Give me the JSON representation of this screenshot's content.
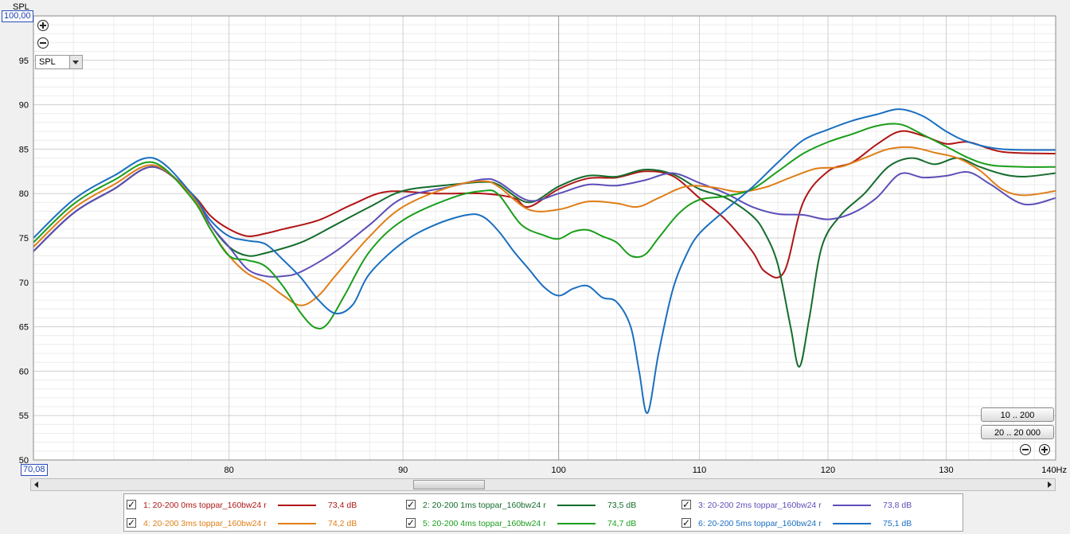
{
  "axis": {
    "y_top_label": "100,00",
    "y_unit": "SPL",
    "x_left_label": "70,08",
    "x_unit": "Hz"
  },
  "controls": {
    "mode_select": "SPL",
    "range_btn_1": "10 .. 200",
    "range_btn_2": "20 .. 20 000"
  },
  "colors": {
    "s1": "#b01515",
    "s2": "#146c2c",
    "s3": "#5c4fb8",
    "s4": "#e07e18",
    "s5": "#1a9e1a",
    "s6": "#1a6fc0"
  },
  "legend": [
    {
      "label": "1: 20-200 0ms toppar_160bw24 r",
      "db": "73,4 dB",
      "color": "#b01515"
    },
    {
      "label": "2: 20-200 1ms toppar_160bw24 r",
      "db": "73,5 dB",
      "color": "#146c2c"
    },
    {
      "label": "3: 20-200 2ms toppar_160bw24 r",
      "db": "73,8 dB",
      "color": "#5c4fb8"
    },
    {
      "label": "4: 20-200 3ms toppar_160bw24 r",
      "db": "74,2 dB",
      "color": "#e07e18"
    },
    {
      "label": "5: 20-200 4ms toppar_160bw24 r",
      "db": "74,7 dB",
      "color": "#1a9e1a"
    },
    {
      "label": "6: 20-200 5ms toppar_160bw24 r",
      "db": "75,1 dB",
      "color": "#1a6fc0"
    }
  ],
  "chart_data": {
    "type": "line",
    "ylabel": "SPL",
    "x_scale": "log",
    "xlim": [
      70.08,
      140
    ],
    "ylim": [
      50,
      100
    ],
    "x_ticks": [
      80,
      90,
      100,
      110,
      120,
      130,
      140
    ],
    "x_tick_labels": [
      "80",
      "90",
      "100",
      "110",
      "120",
      "130",
      "140Hz"
    ],
    "y_ticks": [
      50,
      55,
      60,
      65,
      70,
      75,
      80,
      85,
      90,
      95
    ],
    "grid": true,
    "series": [
      {
        "name": "1: 20-200 0ms toppar_160bw24 r",
        "color": "#b01515",
        "x": [
          70.08,
          72,
          74,
          76,
          78,
          79,
          80,
          81,
          82,
          83,
          85,
          87,
          89,
          92,
          95,
          97,
          98,
          100,
          102,
          104,
          106,
          108,
          110,
          112,
          114,
          115,
          116.5,
          118,
          120,
          122,
          124,
          126,
          128,
          130,
          132,
          135,
          140
        ],
        "y": [
          73.5,
          77.8,
          80.5,
          83,
          80,
          77.5,
          76,
          75.2,
          75.5,
          76,
          77,
          78.8,
          80.2,
          80,
          80,
          79.5,
          78.5,
          80.5,
          81.7,
          81.8,
          82.5,
          82,
          79.5,
          77,
          73.5,
          71.2,
          71.2,
          79,
          82.5,
          83.5,
          85.5,
          87,
          86.5,
          85.6,
          85.8,
          84.7,
          84.5
        ]
      },
      {
        "name": "2: 20-200 1ms toppar_160bw24 r",
        "color": "#146c2c",
        "x": [
          70.08,
          72,
          74,
          76,
          78,
          79,
          80,
          81,
          82,
          84,
          86,
          88,
          90,
          93,
          95,
          96,
          98,
          100,
          102,
          104,
          106,
          108,
          110,
          112,
          114,
          115,
          116,
          117,
          117.7,
          118.5,
          119.5,
          121,
          123,
          125,
          127,
          129,
          131,
          133,
          135,
          137,
          140
        ],
        "y": [
          73.5,
          77.8,
          80.5,
          83,
          80,
          76.5,
          74,
          73,
          73.3,
          74.5,
          76.5,
          78.5,
          80.3,
          81,
          81.3,
          81,
          79,
          80.8,
          82,
          81.9,
          82.7,
          82.2,
          80.5,
          79.5,
          77.5,
          75.5,
          72,
          65,
          60.5,
          66,
          74,
          77.5,
          80,
          83,
          84,
          83.3,
          84,
          83,
          82.2,
          81.9,
          82.3
        ]
      },
      {
        "name": "3: 20-200 2ms toppar_160bw24 r",
        "color": "#5c4fb8",
        "x": [
          70.08,
          72,
          74,
          76,
          78,
          79,
          80,
          81,
          82,
          83,
          84,
          86,
          88,
          90,
          93,
          95,
          96,
          98,
          100,
          102,
          104,
          106,
          108,
          110,
          112,
          114,
          116,
          118,
          120,
          122,
          124,
          126,
          128,
          130,
          132,
          134,
          137,
          140
        ],
        "y": [
          73.5,
          77.8,
          80.5,
          83,
          80,
          76.5,
          74,
          71.5,
          70.7,
          70.7,
          71.2,
          73.5,
          76.5,
          79.5,
          80.8,
          81.6,
          81.3,
          79.2,
          80,
          81,
          80.9,
          81.5,
          82.3,
          81.2,
          80,
          78.5,
          77.7,
          77.6,
          77.1,
          77.8,
          79.5,
          82.2,
          81.8,
          82,
          82.4,
          81,
          78.8,
          79.5
        ]
      },
      {
        "name": "4: 20-200 3ms toppar_160bw24 r",
        "color": "#e07e18",
        "x": [
          70.08,
          72,
          74,
          76,
          78,
          79,
          80,
          81,
          82,
          83,
          84,
          85,
          86,
          88,
          90,
          93,
          95,
          96,
          98,
          100,
          102,
          104,
          105.5,
          107,
          109,
          111,
          113,
          115,
          117,
          119,
          121,
          123,
          125,
          127,
          129,
          131,
          133,
          135,
          137,
          140
        ],
        "y": [
          74,
          78.3,
          81,
          83.2,
          79.8,
          76,
          73,
          71,
          70,
          68.5,
          67.4,
          68.5,
          70.8,
          75.2,
          78.5,
          80.8,
          81.4,
          80.8,
          78.2,
          78.2,
          79.1,
          78.9,
          78.5,
          79.5,
          80.8,
          80.7,
          80.2,
          80.7,
          81.8,
          82.8,
          83,
          84,
          85,
          85.2,
          84.6,
          84,
          82.6,
          80.5,
          79.8,
          80.3
        ]
      },
      {
        "name": "5: 20-200 4ms toppar_160bw24 r",
        "color": "#1a9e1a",
        "x": [
          70.08,
          72,
          74,
          76,
          78,
          79,
          80,
          81,
          82,
          83,
          84,
          84.8,
          85.5,
          86.5,
          88,
          90,
          93,
          95,
          96,
          97.5,
          99,
          100,
          101,
          102,
          103,
          104,
          105,
          106,
          107,
          108.5,
          110,
          112,
          114,
          116,
          118,
          120,
          122,
          124,
          126,
          128,
          130,
          132,
          134,
          137,
          140
        ],
        "y": [
          74.5,
          78.8,
          81.5,
          83.5,
          79.5,
          76,
          73,
          72.5,
          71.8,
          69.5,
          66.5,
          64.9,
          65.3,
          68.5,
          73.5,
          77,
          79.5,
          80.3,
          79.9,
          76.5,
          75.3,
          74.9,
          75.7,
          75.9,
          75.2,
          74.5,
          73,
          73.1,
          75,
          77.8,
          79.3,
          79.7,
          80.5,
          82.5,
          84.5,
          85.8,
          86.7,
          87.6,
          87.8,
          86.6,
          85.3,
          84,
          83.2,
          83,
          83
        ]
      },
      {
        "name": "6: 20-200 5ms toppar_160bw24 r",
        "color": "#1a6fc0",
        "x": [
          70.08,
          72,
          74,
          76,
          78,
          79,
          80,
          81,
          82,
          83,
          84,
          85,
          86,
          87,
          88,
          90,
          92,
          94,
          95,
          96,
          97,
          98,
          99,
          100,
          101,
          102,
          103,
          104,
          105,
          105.6,
          106.2,
          107,
          108,
          109,
          110,
          112,
          114,
          116,
          118,
          120,
          122,
          124,
          126,
          128,
          130,
          132,
          135,
          140
        ],
        "y": [
          75,
          79.3,
          82,
          84,
          80,
          77,
          75.2,
          74.7,
          74.3,
          72.5,
          70.5,
          68,
          66.5,
          67.5,
          71,
          74.5,
          76.5,
          77.6,
          77.4,
          75.8,
          73.5,
          71.5,
          69.5,
          68.5,
          69.3,
          69.6,
          68.3,
          67.8,
          65,
          60,
          55.3,
          62,
          69,
          73,
          75.5,
          78.2,
          80.7,
          83.5,
          86,
          87.2,
          88.2,
          88.9,
          89.5,
          88.7,
          87,
          85.8,
          85,
          84.9
        ]
      }
    ]
  }
}
